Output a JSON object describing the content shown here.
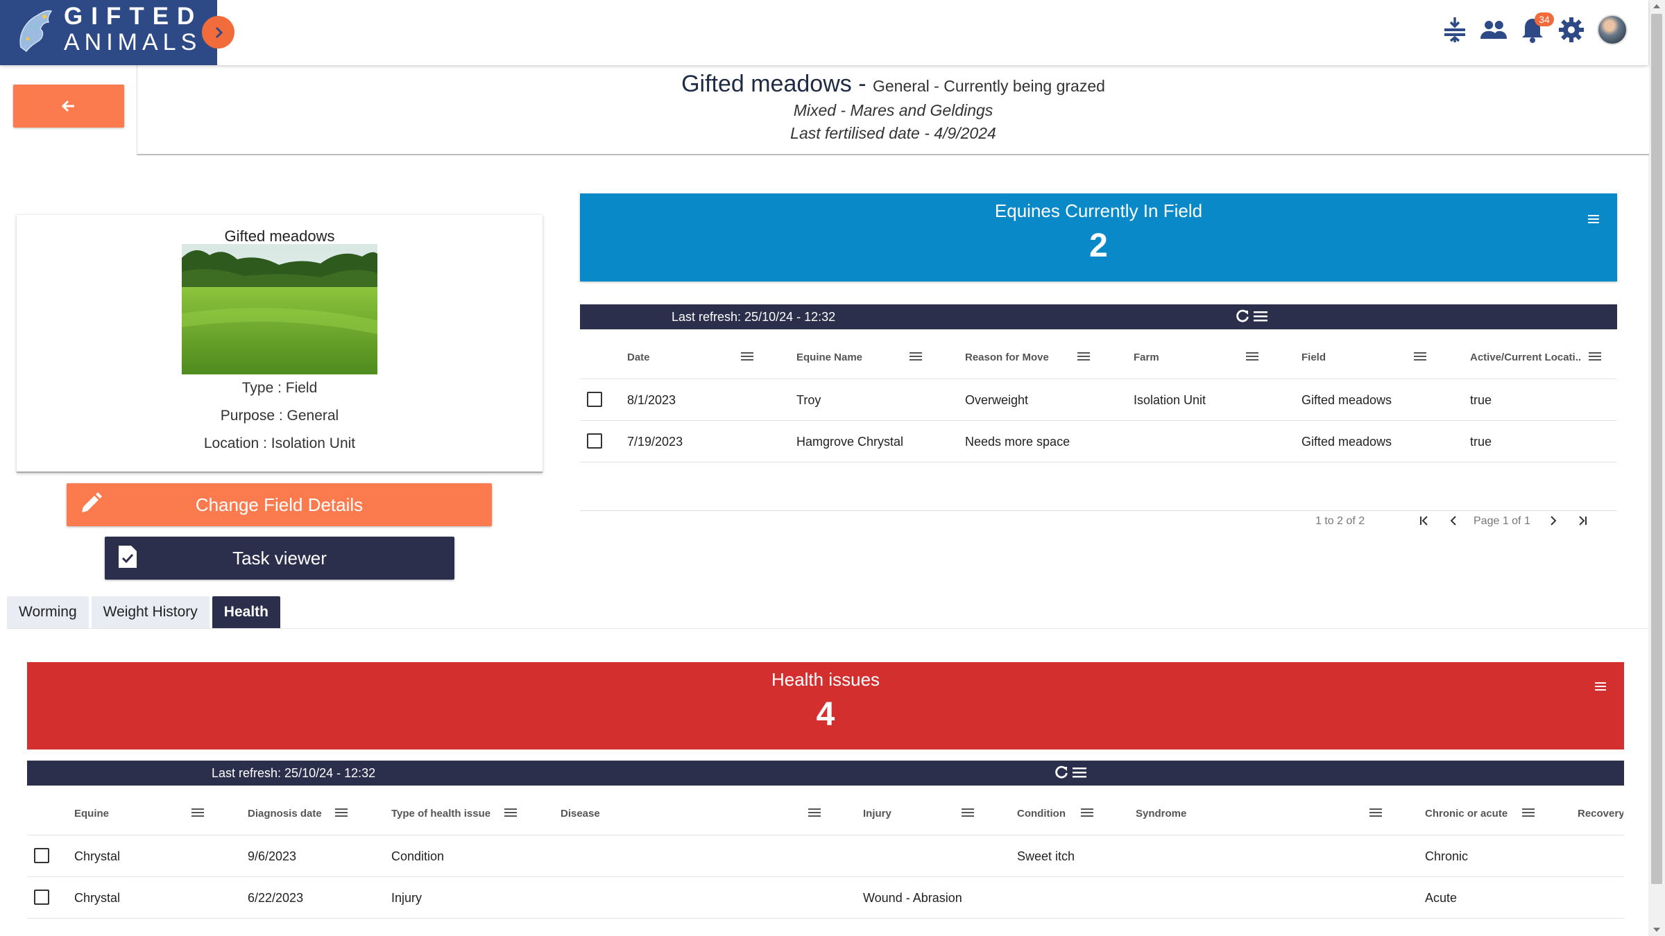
{
  "brand": {
    "line1": "GIFTED",
    "line2": "ANIMALS"
  },
  "topbar": {
    "notification_count": "34"
  },
  "header": {
    "field_name": "Gifted meadows",
    "separator": " - ",
    "purpose_status": "General - Currently being grazed",
    "mix": "Mixed - Mares and Geldings",
    "fertilised": "Last fertilised date - 4/9/2024"
  },
  "field_card": {
    "title": "Gifted meadows",
    "type": "Type : Field",
    "purpose": "Purpose : General",
    "location": "Location : Isolation Unit"
  },
  "buttons": {
    "change_field": "Change Field Details",
    "task_viewer": "Task viewer"
  },
  "equines_card": {
    "title": "Equines Currently In Field",
    "value": "2"
  },
  "equines_grid": {
    "last_refresh": "Last refresh: 25/10/24 - 12:32",
    "columns": [
      "Date",
      "Equine Name",
      "Reason for Move",
      "Farm",
      "Field",
      "Active/Current Locati..."
    ],
    "rows": [
      [
        "8/1/2023",
        "Troy",
        "Overweight",
        "Isolation Unit",
        "Gifted meadows",
        "true"
      ],
      [
        "7/19/2023",
        "Hamgrove Chrystal",
        "Needs more space",
        "",
        "Gifted meadows",
        "true"
      ]
    ],
    "pager": {
      "summary": "1 to 2 of 2",
      "page": "Page 1 of 1"
    }
  },
  "tabs": [
    {
      "label": "Worming",
      "active": false
    },
    {
      "label": "Weight History",
      "active": false
    },
    {
      "label": "Health",
      "active": true
    }
  ],
  "health_card": {
    "title": "Health issues",
    "value": "4"
  },
  "health_grid": {
    "last_refresh": "Last refresh: 25/10/24 - 12:32",
    "columns": [
      "Equine",
      "Diagnosis date",
      "Type of health issue",
      "Disease",
      "Injury",
      "Condition",
      "Syndrome",
      "Chronic or acute",
      "Recovery"
    ],
    "rows": [
      [
        "Chrystal",
        "9/6/2023",
        "Condition",
        "",
        "",
        "Sweet itch",
        "",
        "Chronic",
        ""
      ],
      [
        "Chrystal",
        "6/22/2023",
        "Injury",
        "",
        "Wound - Abrasion",
        "",
        "",
        "Acute",
        ""
      ]
    ]
  },
  "colors": {
    "brand_blue": "#2e4a86",
    "accent_orange": "#fb7b4e",
    "info_blue": "#0a89c9",
    "alert_red": "#d32f2f",
    "navy": "#2b2f4c"
  },
  "icons": [
    "bars-icon",
    "people-icon",
    "bell-icon",
    "gear-icon",
    "avatar",
    "arrow-left-icon",
    "pencil-icon",
    "task-icon",
    "refresh-icon",
    "menu-icon"
  ]
}
